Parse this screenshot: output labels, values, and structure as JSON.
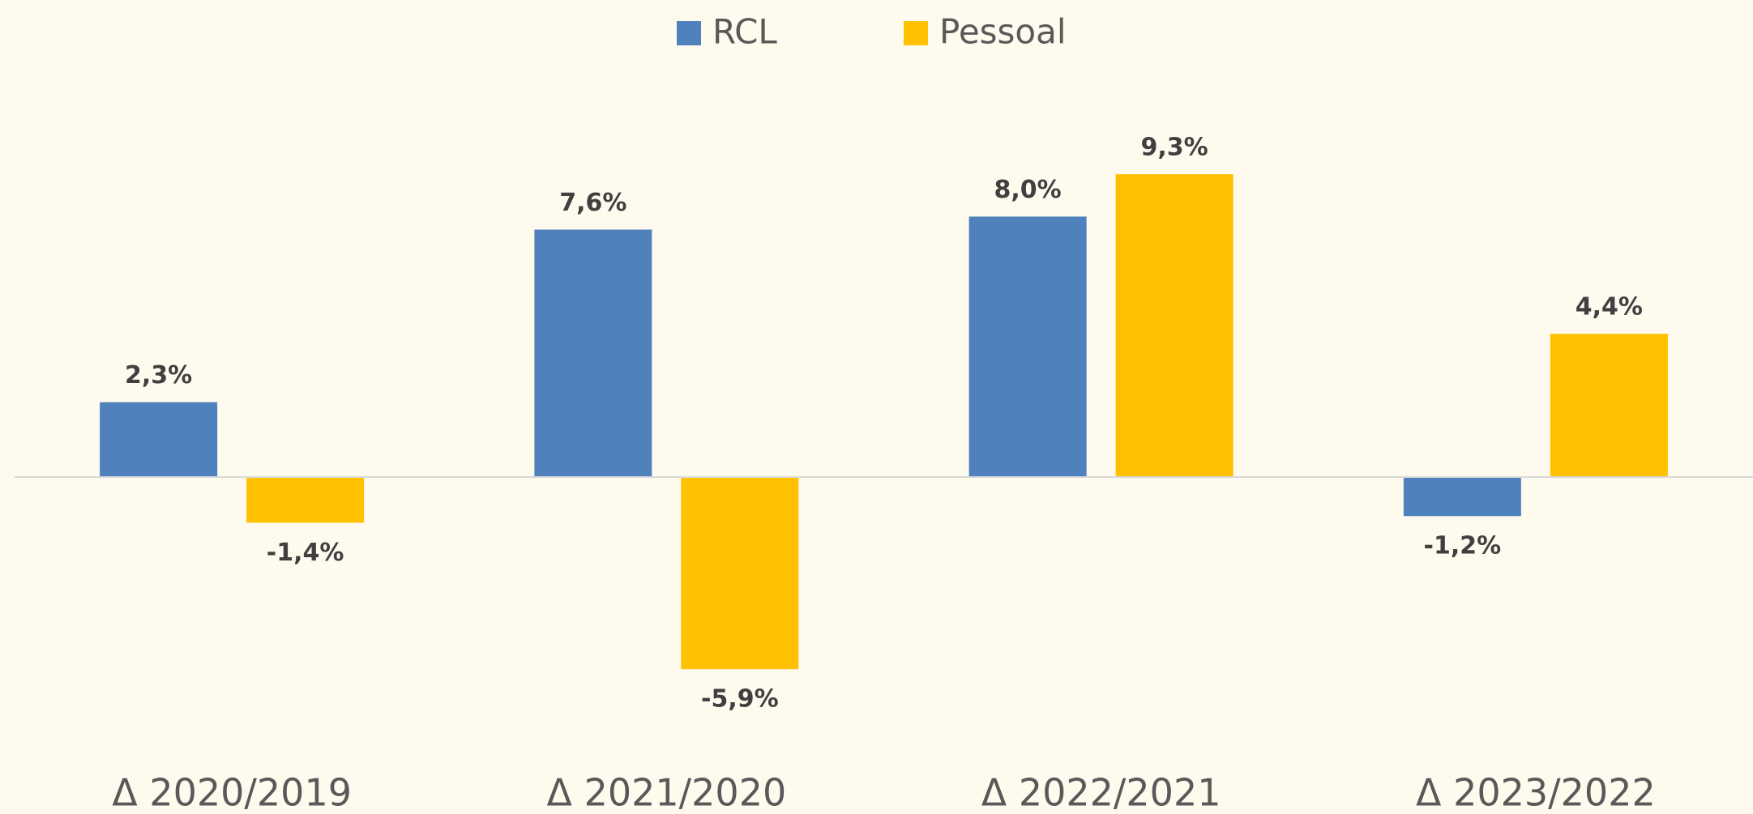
{
  "chart_data": {
    "type": "bar",
    "categories": [
      "Δ 2020/2019",
      "Δ 2021/2020",
      "Δ 2022/2021",
      "Δ 2023/2022"
    ],
    "series": [
      {
        "name": "RCL",
        "color": "#4f81bd",
        "values": [
          2.3,
          7.6,
          8.0,
          -1.2
        ],
        "value_labels": [
          "2,3%",
          "7,6%",
          "8,0%",
          "-1,2%"
        ]
      },
      {
        "name": "Pessoal",
        "color": "#ffc000",
        "values": [
          -1.4,
          -5.9,
          9.3,
          4.4
        ],
        "value_labels": [
          "-1,4%",
          "-5,9%",
          "9,3%",
          "4,4%"
        ]
      }
    ],
    "ylim": [
      -8,
      12
    ],
    "legend": "top"
  }
}
